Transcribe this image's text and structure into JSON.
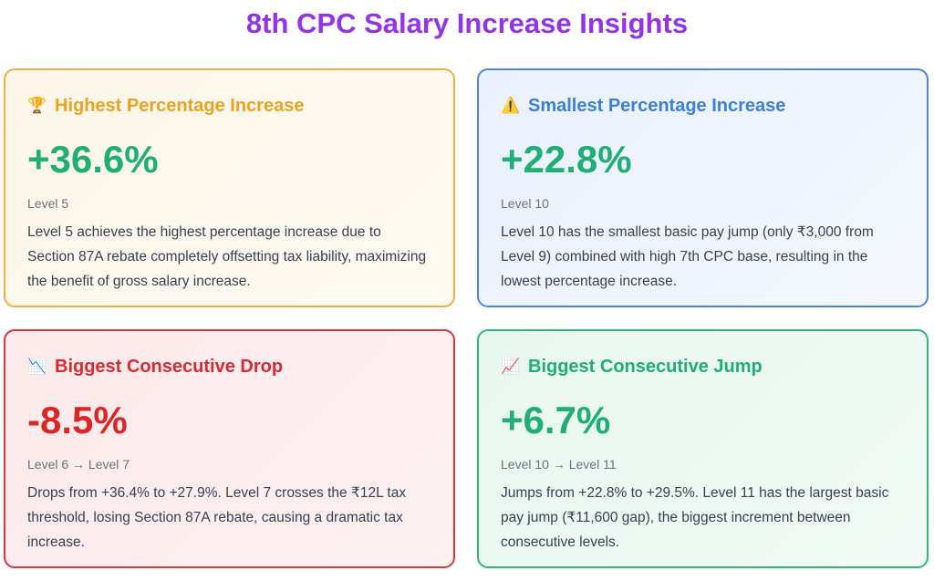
{
  "title": "8th CPC Salary Increase Insights",
  "colors": {
    "title": "#9333ea",
    "positive": "#1fae74",
    "negative": "#dc2626"
  },
  "cards": [
    {
      "icon": "trophy-icon",
      "icon_glyph": "🏆",
      "title": "Highest Percentage Increase",
      "title_color": "#eba21f",
      "value": "+36.6%",
      "value_color": "#1fae74",
      "sub": "Level 5",
      "desc": "Level 5 achieves the highest percentage increase due to Section 87A rebate completely offsetting tax liability, maximizing the benefit of gross salary increase."
    },
    {
      "icon": "warning-icon",
      "icon_glyph": "⚠️",
      "title": "Smallest Percentage Increase",
      "title_color": "#3b7fdb",
      "value": "+22.8%",
      "value_color": "#1fae74",
      "sub": "Level 10",
      "desc": "Level 10 has the smallest basic pay jump (only ₹3,000 from Level 9) combined with high 7th CPC base, resulting in the lowest percentage increase."
    },
    {
      "icon": "chart-decreasing-icon",
      "icon_glyph": "📉",
      "title": "Biggest Consecutive Drop",
      "title_color": "#d62b33",
      "value": "-8.5%",
      "value_color": "#dc2626",
      "sub": "Level 6 → Level 7",
      "desc": "Drops from +36.4% to +27.9%. Level 7 crosses the ₹12L tax threshold, losing Section 87A rebate, causing a dramatic tax increase."
    },
    {
      "icon": "chart-increasing-icon",
      "icon_glyph": "📈",
      "title": "Biggest Consecutive Jump",
      "title_color": "#1fae74",
      "value": "+6.7%",
      "value_color": "#1fae74",
      "sub": "Level 10 → Level 11",
      "desc": "Jumps from +22.8% to +29.5%. Level 11 has the largest basic pay jump (₹11,600 gap), the biggest increment between consecutive levels."
    }
  ]
}
